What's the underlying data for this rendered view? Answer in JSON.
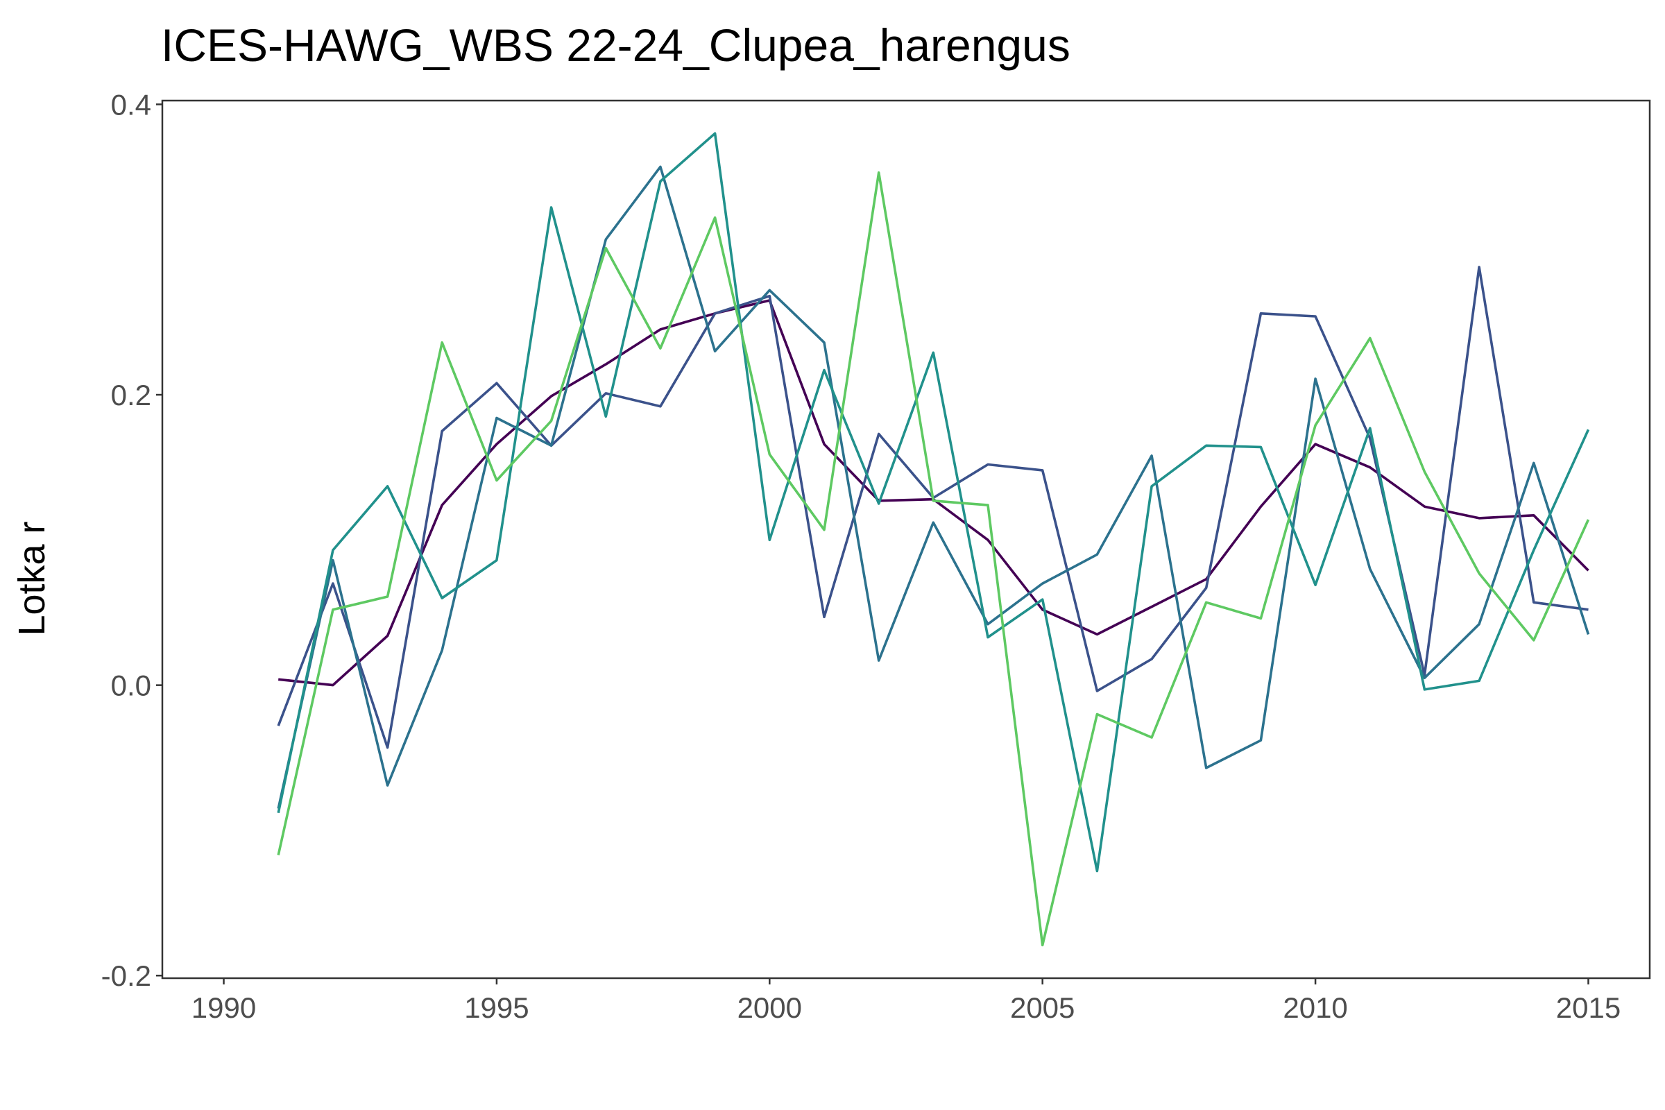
{
  "chart_data": {
    "type": "line",
    "title": "ICES-HAWG_WBS 22-24_Clupea_harengus",
    "xlabel": "",
    "ylabel": "Lotka r",
    "xlim": [
      1990,
      2015
    ],
    "ylim": [
      -0.2,
      0.4
    ],
    "x_ticks": [
      1990,
      1995,
      2000,
      2005,
      2010,
      2015
    ],
    "y_ticks": [
      -0.2,
      0.0,
      0.2,
      0.4
    ],
    "y_tick_labels": [
      "-0.2",
      "0.0",
      "0.2",
      "0.4"
    ],
    "grid": false,
    "legend": "none",
    "x": [
      1991,
      1992,
      1993,
      1994,
      1995,
      1996,
      1997,
      1998,
      1999,
      2000,
      2001,
      2002,
      2003,
      2004,
      2005,
      2006,
      2007,
      2008,
      2009,
      2010,
      2011,
      2012,
      2013,
      2014,
      2015
    ],
    "series": [
      {
        "color": "#440154",
        "values": [
          0.004,
          0.0,
          0.034,
          0.124,
          0.166,
          0.199,
          0.221,
          0.245,
          0.256,
          0.265,
          0.166,
          0.127,
          0.128,
          0.1,
          0.052,
          0.035,
          0.054,
          0.073,
          0.123,
          0.166,
          0.15,
          0.123,
          0.115,
          0.117,
          0.079
        ]
      },
      {
        "color": "#3b528b",
        "values": [
          -0.028,
          0.07,
          -0.043,
          0.175,
          0.208,
          0.165,
          0.201,
          0.192,
          0.256,
          0.268,
          0.047,
          0.173,
          0.129,
          0.152,
          0.148,
          -0.004,
          0.018,
          0.067,
          0.256,
          0.254,
          0.17,
          0.007,
          0.288,
          0.057,
          0.052
        ]
      },
      {
        "color": "#2c728e",
        "values": [
          -0.085,
          0.086,
          -0.069,
          0.024,
          0.184,
          0.165,
          0.307,
          0.357,
          0.23,
          0.272,
          0.236,
          0.017,
          0.112,
          0.042,
          0.07,
          0.09,
          0.158,
          -0.057,
          -0.038,
          0.211,
          0.08,
          0.005,
          0.042,
          0.153,
          0.035
        ]
      },
      {
        "color": "#21918c",
        "values": [
          -0.088,
          0.093,
          0.137,
          0.06,
          0.086,
          0.329,
          0.185,
          0.347,
          0.38,
          0.1,
          0.217,
          0.125,
          0.229,
          0.033,
          0.059,
          -0.128,
          0.137,
          0.165,
          0.164,
          0.069,
          0.177,
          -0.003,
          0.003,
          0.093,
          0.176
        ]
      },
      {
        "color": "#5ec962",
        "values": [
          -0.117,
          0.052,
          0.061,
          0.236,
          0.141,
          0.182,
          0.301,
          0.232,
          0.322,
          0.159,
          0.107,
          0.353,
          0.127,
          0.124,
          -0.179,
          -0.02,
          -0.036,
          0.057,
          0.046,
          0.179,
          0.239,
          0.147,
          0.077,
          0.031,
          0.114
        ]
      }
    ]
  }
}
